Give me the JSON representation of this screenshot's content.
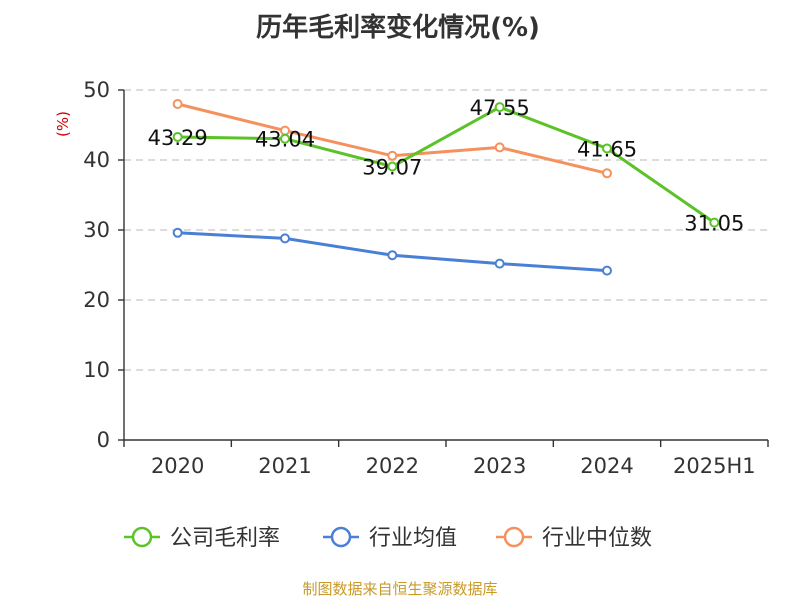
{
  "chart_data": {
    "type": "line",
    "title": "历年毛利率变化情况(%)",
    "ylabel": "(%)",
    "ylim": [
      0,
      50
    ],
    "yticks": [
      0,
      10,
      20,
      30,
      40,
      50
    ],
    "categories": [
      "2020",
      "2021",
      "2022",
      "2023",
      "2024",
      "2025H1"
    ],
    "grid": true,
    "legend_position": "bottom",
    "series": [
      {
        "name": "公司毛利率",
        "color": "#5bc228",
        "values": [
          43.29,
          43.04,
          39.07,
          47.55,
          41.65,
          31.05
        ],
        "labels": [
          "43.29",
          "43.04",
          "39.07",
          "47.55",
          "41.65",
          "31.05"
        ]
      },
      {
        "name": "行业均值",
        "color": "#4a7fd6",
        "values": [
          29.6,
          28.8,
          26.4,
          25.2,
          24.2,
          null
        ]
      },
      {
        "name": "行业中位数",
        "color": "#f4915c",
        "values": [
          48.0,
          44.2,
          40.6,
          41.8,
          38.1,
          null
        ]
      }
    ]
  },
  "colors": {
    "ylabel": "#cc0000",
    "source": "#c89a28",
    "axis": "#333333",
    "grid": "#c8c8c8"
  },
  "source_text": "制图数据来自恒生聚源数据库"
}
